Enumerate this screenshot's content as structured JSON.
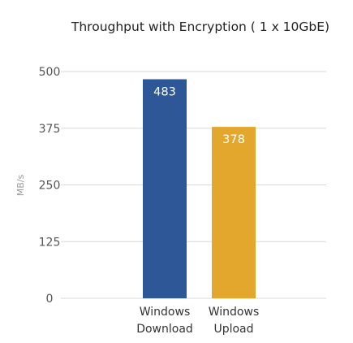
{
  "chart_data": {
    "type": "bar",
    "title": "Throughput with Encryption ( 1 x 10GbE)",
    "ylabel": "MB/s",
    "xlabel": "",
    "ylim": [
      0,
      500
    ],
    "yticks": [
      0,
      125,
      250,
      375,
      500
    ],
    "grid": true,
    "categories": [
      {
        "line1": "Windows",
        "line2": "Download"
      },
      {
        "line1": "Windows",
        "line2": "Upload"
      }
    ],
    "values": [
      483,
      378
    ],
    "data_labels": [
      "483",
      "378"
    ],
    "colors": [
      "#2e5797",
      "#e4a72d"
    ]
  }
}
